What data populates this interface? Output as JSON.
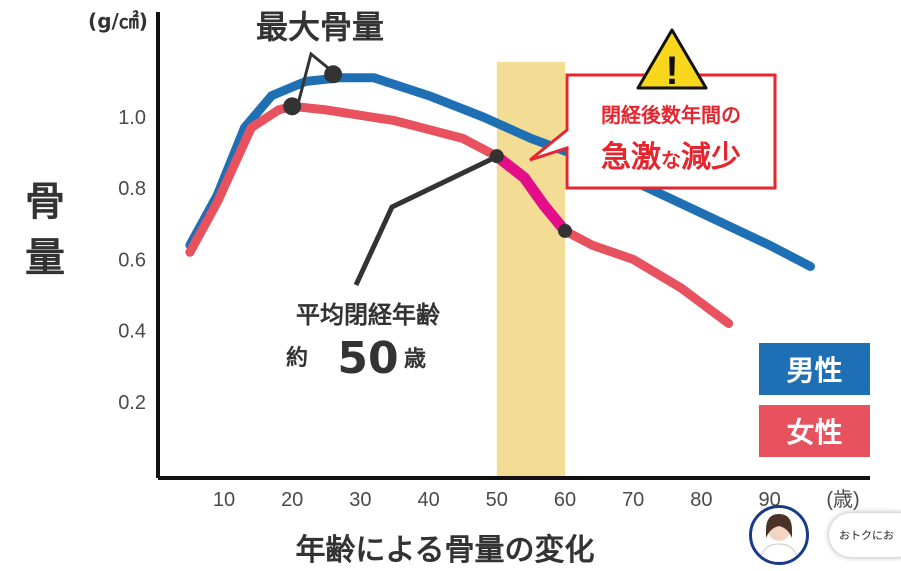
{
  "chart_data": {
    "type": "line",
    "title": "",
    "xlabel": "年齢による骨量の変化",
    "ylabel": "骨量",
    "y_unit": "(g/㎠)",
    "x_unit": "(歳)",
    "xlim": [
      0,
      97
    ],
    "ylim": [
      0,
      1.2
    ],
    "x_ticks": [
      "10",
      "20",
      "30",
      "40",
      "50",
      "60",
      "70",
      "80",
      "90"
    ],
    "y_ticks": [
      "0.2",
      "0.4",
      "0.6",
      "0.8",
      "1.0"
    ],
    "grid": false,
    "legend_placement": "right",
    "series": [
      {
        "name": "男性",
        "color": "#1f6fb5",
        "points": [
          [
            5,
            0.64
          ],
          [
            9,
            0.78
          ],
          [
            13,
            0.97
          ],
          [
            17,
            1.06
          ],
          [
            22,
            1.1
          ],
          [
            27,
            1.11
          ],
          [
            32,
            1.11
          ],
          [
            40,
            1.06
          ],
          [
            48,
            1.0
          ],
          [
            55,
            0.94
          ],
          [
            62,
            0.89
          ],
          [
            70,
            0.82
          ],
          [
            80,
            0.73
          ],
          [
            90,
            0.64
          ],
          [
            96,
            0.58
          ]
        ]
      },
      {
        "name": "女性",
        "color": "#e8525f",
        "points": [
          [
            5,
            0.62
          ],
          [
            9,
            0.76
          ],
          [
            14,
            0.97
          ],
          [
            18,
            1.02
          ],
          [
            20,
            1.03
          ],
          [
            25,
            1.02
          ],
          [
            35,
            0.99
          ],
          [
            45,
            0.94
          ],
          [
            50,
            0.89
          ],
          [
            54,
            0.83
          ],
          [
            57,
            0.75
          ],
          [
            60,
            0.68
          ],
          [
            64,
            0.64
          ],
          [
            70,
            0.6
          ],
          [
            77,
            0.52
          ],
          [
            84,
            0.42
          ]
        ]
      }
    ],
    "highlight_band": {
      "x_from": 50,
      "x_to": 60,
      "color": "#f2d98a"
    },
    "highlight_segment": {
      "color": "#e40d8a",
      "points": [
        [
          50,
          0.89
        ],
        [
          54,
          0.83
        ],
        [
          57,
          0.75
        ],
        [
          60,
          0.68
        ]
      ]
    },
    "markers": [
      {
        "x": 20,
        "y": 1.03
      },
      {
        "x": 26,
        "y": 1.12
      },
      {
        "x": 50,
        "y": 0.89
      },
      {
        "x": 60,
        "y": 0.68
      }
    ],
    "annotations": {
      "peak": "最大骨量",
      "menopause_line1": "平均閉経年齢",
      "menopause_prefix": "約",
      "menopause_age": "50",
      "menopause_suffix": "歳",
      "warning_line1": "閉経後数年間の",
      "warning_line2_a": "急激",
      "warning_line2_b": "な",
      "warning_line2_c": "減少",
      "warning_icon": "!"
    }
  },
  "chat": {
    "avatar_icon": "person-avatar",
    "text": "おトクにお"
  }
}
